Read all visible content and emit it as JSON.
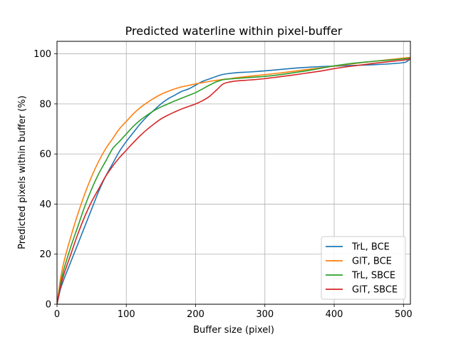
{
  "chart_data": {
    "type": "line",
    "title": "Predicted waterline within pixel-buffer",
    "xlabel": "Buffer size (pixel)",
    "ylabel": "Predicted pixels within buffer (%)",
    "xlim": [
      0,
      510
    ],
    "ylim": [
      0,
      105
    ],
    "xticks": [
      0,
      100,
      200,
      300,
      400,
      500
    ],
    "yticks": [
      0,
      20,
      40,
      60,
      80,
      100
    ],
    "grid": true,
    "legend_position": "lower right",
    "series": [
      {
        "name": "TrL, BCE",
        "color": "#1f77b4",
        "x": [
          0,
          5,
          10,
          20,
          30,
          40,
          50,
          60,
          70,
          80,
          90,
          100,
          110,
          120,
          130,
          140,
          150,
          160,
          170,
          180,
          190,
          200,
          210,
          220,
          230,
          240,
          250,
          260,
          280,
          300,
          320,
          340,
          360,
          380,
          400,
          420,
          440,
          460,
          480,
          500,
          505,
          510
        ],
        "y": [
          0,
          6,
          10,
          17,
          24,
          31,
          38,
          45,
          51,
          56,
          61,
          65,
          68.5,
          72,
          75,
          77.5,
          80,
          82,
          83.5,
          85,
          86,
          87.5,
          89,
          90,
          91,
          91.8,
          92.2,
          92.5,
          92.8,
          93.2,
          93.7,
          94.2,
          94.6,
          94.9,
          95.1,
          95.3,
          95.5,
          95.7,
          96,
          96.5,
          97,
          98
        ]
      },
      {
        "name": "GlT, BCE",
        "color": "#ff7f0e",
        "x": [
          0,
          5,
          10,
          20,
          30,
          40,
          50,
          60,
          70,
          80,
          90,
          100,
          110,
          120,
          130,
          140,
          150,
          160,
          170,
          180,
          190,
          200,
          210,
          220,
          230,
          240,
          250,
          260,
          280,
          300,
          320,
          340,
          360,
          380,
          400,
          420,
          440,
          460,
          480,
          500,
          510
        ],
        "y": [
          0,
          10,
          17,
          27,
          36,
          44,
          51,
          57,
          62,
          66,
          70,
          73,
          76,
          78.5,
          80.5,
          82.3,
          83.8,
          85,
          86,
          86.8,
          87.4,
          88,
          88.5,
          89,
          89.4,
          89.8,
          90.1,
          90.5,
          91.1,
          91.7,
          92.3,
          93,
          93.7,
          94.4,
          95.1,
          95.8,
          96.5,
          97.1,
          97.7,
          98.3,
          98.6
        ]
      },
      {
        "name": "TrL, SBCE",
        "color": "#2ca02c",
        "x": [
          0,
          5,
          10,
          20,
          30,
          40,
          50,
          60,
          70,
          80,
          90,
          100,
          110,
          120,
          130,
          140,
          150,
          160,
          170,
          180,
          190,
          200,
          210,
          220,
          230,
          240,
          250,
          260,
          280,
          300,
          320,
          340,
          360,
          380,
          400,
          420,
          440,
          460,
          480,
          500,
          510
        ],
        "y": [
          0,
          8,
          14,
          23,
          31,
          39,
          46,
          52,
          57,
          62,
          65,
          68,
          71,
          73.5,
          75.5,
          77.3,
          78.8,
          80,
          81.2,
          82.3,
          83.4,
          84.5,
          86,
          87.5,
          88.8,
          89.7,
          90,
          90.2,
          90.6,
          91,
          91.6,
          92.4,
          93.2,
          94.2,
          95.2,
          96,
          96.6,
          97.1,
          97.5,
          98,
          98.3
        ]
      },
      {
        "name": "GlT, SBCE",
        "color": "#d62728",
        "x": [
          0,
          5,
          10,
          20,
          30,
          40,
          50,
          60,
          70,
          80,
          90,
          100,
          110,
          120,
          130,
          140,
          150,
          160,
          170,
          180,
          190,
          200,
          210,
          220,
          230,
          240,
          250,
          260,
          280,
          300,
          320,
          340,
          360,
          380,
          400,
          420,
          440,
          460,
          480,
          500,
          510
        ],
        "y": [
          0,
          7,
          12,
          20,
          28,
          35,
          41,
          46,
          51,
          55,
          58.5,
          61.5,
          64.5,
          67.3,
          69.8,
          72,
          74,
          75.5,
          76.8,
          78,
          79,
          80,
          81.3,
          83,
          85.5,
          88,
          88.8,
          89.2,
          89.6,
          90.1,
          90.8,
          91.5,
          92.3,
          93.1,
          94.1,
          94.9,
          95.6,
          96.3,
          96.9,
          97.5,
          97.9
        ]
      }
    ]
  }
}
